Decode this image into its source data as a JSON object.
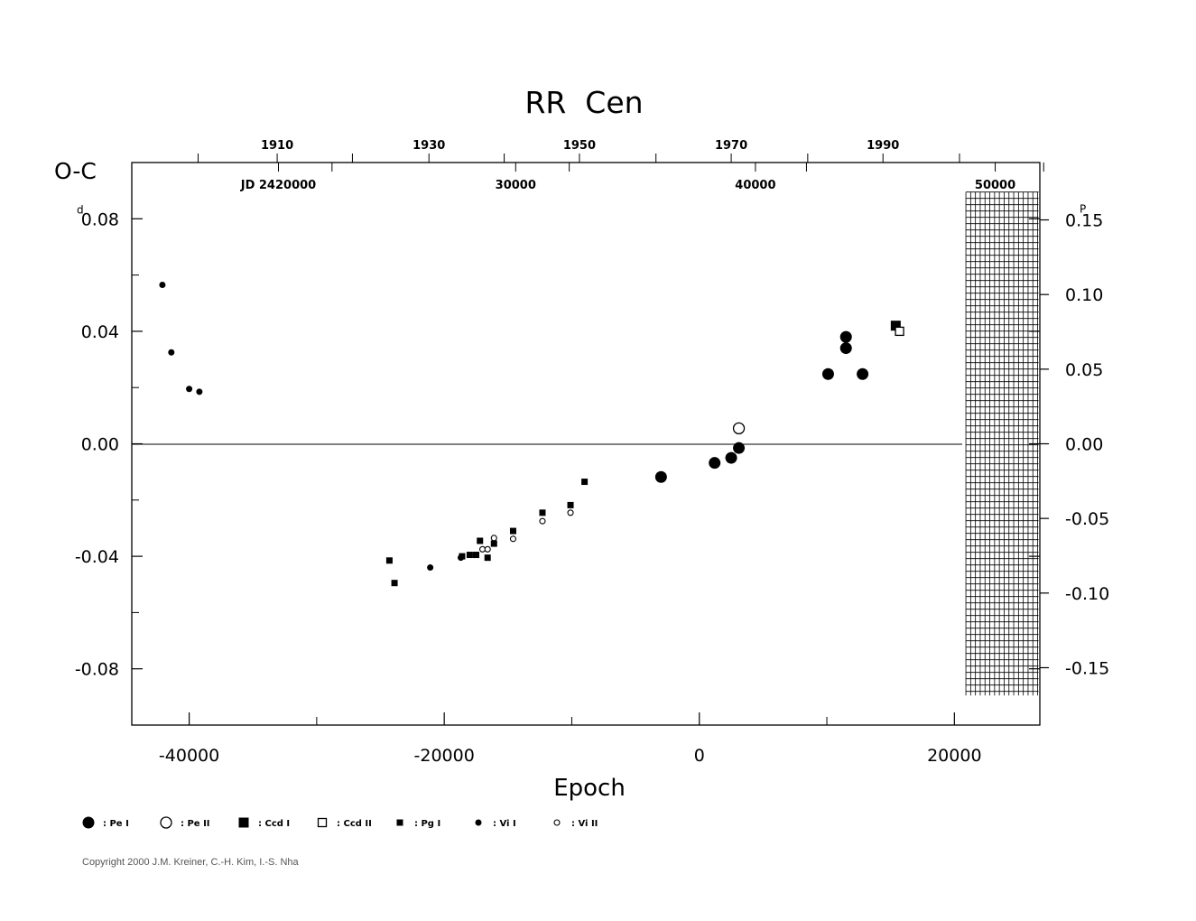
{
  "chart_data": {
    "type": "scatter",
    "title": "RR  Cen",
    "xlabel": "Epoch",
    "ylabel": "O-C",
    "ylabel_unit": "d",
    "right_unit": "P",
    "xlim": [
      -44500,
      26700
    ],
    "ylim": [
      -0.1,
      0.1
    ],
    "x_ticks": [
      -40000,
      -20000,
      0,
      20000
    ],
    "x_tick_labels": [
      "-40000",
      "-20000",
      "0",
      "20000"
    ],
    "y_ticks": [
      0.08,
      0.04,
      0.0,
      -0.04,
      -0.08
    ],
    "y_tick_labels": [
      "0.08",
      "0.04",
      "0.00",
      "-0.04",
      "-0.08"
    ],
    "right_ticks": [
      0.15,
      0.1,
      0.05,
      0.0,
      -0.05,
      -0.1,
      -0.15
    ],
    "right_tick_labels": [
      "0.15",
      "0.10",
      "0.05",
      "0.00",
      "-0.05",
      "-0.10",
      "-0.15"
    ],
    "period_days": 0.5307,
    "year_labels": [
      "1910",
      "1930",
      "1950",
      "1970",
      "1990"
    ],
    "year_epochs": [
      -33100,
      -21200,
      -9400,
      2500,
      14400
    ],
    "year_minor_epochs": [
      -39300,
      -27200,
      -15300,
      -3400,
      8500,
      20400
    ],
    "jd_labels": [
      "JD  2420000",
      "30000",
      "50000"
    ],
    "jd_label_epochs": [
      -33000,
      -14400,
      23200
    ],
    "jd_40000_label": "40000",
    "jd_40000_epoch": 4400,
    "zero_line": true,
    "hatched_region_epoch": [
      20900,
      26600
    ],
    "hatched_region_oc": [
      0.0895,
      -0.0895
    ],
    "series": [
      {
        "name": "Pe I",
        "marker": "filled-circle-large",
        "points": [
          [
            -3000,
            -0.0118
          ],
          [
            1200,
            -0.0068
          ],
          [
            2500,
            -0.005
          ],
          [
            3100,
            -0.0015
          ],
          [
            10100,
            0.0248
          ],
          [
            11500,
            0.038
          ],
          [
            11500,
            0.034
          ],
          [
            12800,
            0.0248
          ]
        ]
      },
      {
        "name": "Pe II",
        "marker": "open-circle-large",
        "points": [
          [
            3100,
            0.0055
          ]
        ]
      },
      {
        "name": "Ccd I",
        "marker": "filled-square-large",
        "points": [
          [
            15400,
            0.042
          ]
        ]
      },
      {
        "name": "Ccd II",
        "marker": "open-square-large",
        "points": [
          [
            15700,
            0.04
          ]
        ]
      },
      {
        "name": "Pg I",
        "marker": "filled-square-small",
        "points": [
          [
            -24300,
            -0.0415
          ],
          [
            -23900,
            -0.0495
          ],
          [
            -18600,
            -0.04
          ],
          [
            -18000,
            -0.0395
          ],
          [
            -17500,
            -0.0395
          ],
          [
            -17200,
            -0.0345
          ],
          [
            -16600,
            -0.0405
          ],
          [
            -16100,
            -0.0355
          ],
          [
            -14600,
            -0.031
          ],
          [
            -12300,
            -0.0245
          ],
          [
            -10100,
            -0.0218
          ],
          [
            -9000,
            -0.0135
          ]
        ]
      },
      {
        "name": "Vi I",
        "marker": "filled-circle-small",
        "points": [
          [
            -42100,
            0.0565
          ],
          [
            -41400,
            0.0325
          ],
          [
            -40000,
            0.0195
          ],
          [
            -39200,
            0.0185
          ],
          [
            -21100,
            -0.044
          ],
          [
            -18700,
            -0.0405
          ]
        ]
      },
      {
        "name": "Vi II",
        "marker": "open-circle-small",
        "points": [
          [
            -17000,
            -0.0375
          ],
          [
            -16600,
            -0.0375
          ],
          [
            -16100,
            -0.0335
          ],
          [
            -14600,
            -0.0338
          ],
          [
            -12300,
            -0.0275
          ],
          [
            -10100,
            -0.0245
          ]
        ]
      }
    ]
  },
  "legend": [
    {
      "label": ": Pe  I",
      "marker": "filled-circle-large"
    },
    {
      "label": ": Pe  II",
      "marker": "open-circle-large"
    },
    {
      "label": ": Ccd  I",
      "marker": "filled-square-large"
    },
    {
      "label": ": Ccd  II",
      "marker": "open-square-large"
    },
    {
      "label": ": Pg  I",
      "marker": "filled-square-small"
    },
    {
      "label": ": Vi  I",
      "marker": "filled-circle-small"
    },
    {
      "label": ": Vi  II",
      "marker": "open-circle-small"
    }
  ],
  "copyright": "Copyright 2000 J.M. Kreiner, C.-H. Kim, I.-S. Nha"
}
